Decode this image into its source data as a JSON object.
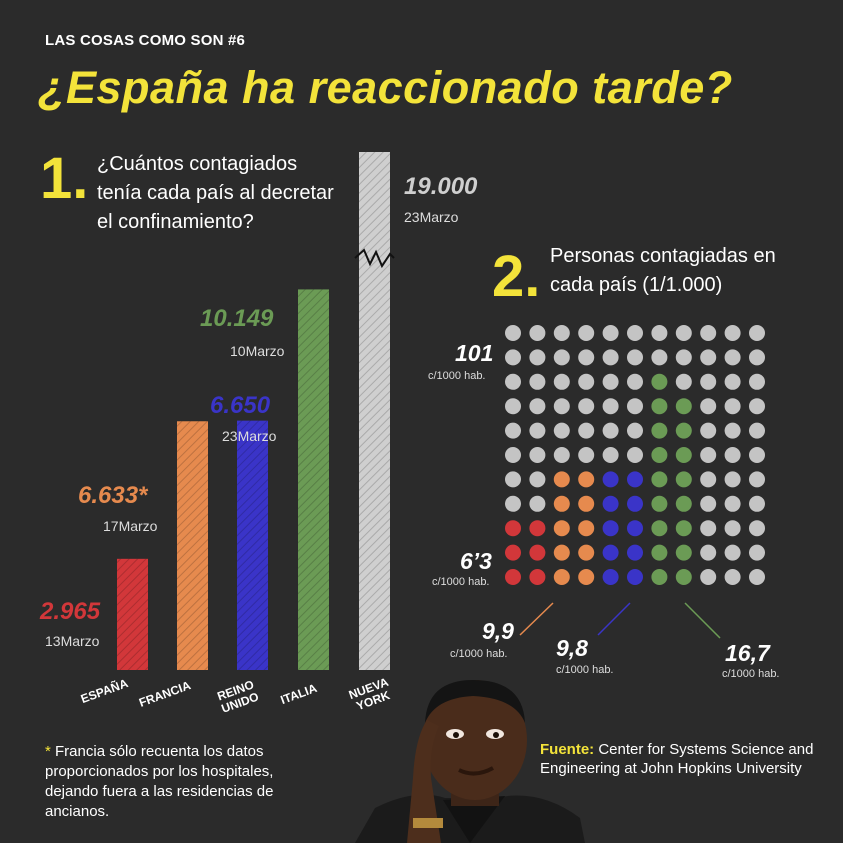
{
  "header": {
    "kicker": "LAS COSAS COMO SON #6",
    "title": "¿España ha reaccionado tarde?"
  },
  "section1": {
    "number": "1.",
    "question": "¿Cuántos contagiados tenía cada país al decretar el confinamiento?"
  },
  "section2": {
    "number": "2.",
    "question": "Personas contagiadas en cada país (1/1.000)"
  },
  "colors": {
    "background": "#2b2b2b",
    "accent": "#f3e33a",
    "spain": "#d2373a",
    "france": "#e68a4e",
    "uk": "#3a34c8",
    "italy": "#6b9b55",
    "newyork": "#cfcfcf",
    "dot_default": "#c4c4c4"
  },
  "chart_data": [
    {
      "type": "bar",
      "categories": [
        "ESPAÑA",
        "FRANCIA",
        "REINO UNIDO",
        "ITALIA",
        "NUEVA YORK"
      ],
      "values": [
        2965,
        6633,
        6650,
        10149,
        19000
      ],
      "value_labels": [
        "2.965",
        "6.633*",
        "6.650",
        "10.149",
        "19.000"
      ],
      "dates": [
        "13Marzo",
        "17Marzo",
        "23Marzo",
        "10Marzo",
        "23Marzo"
      ],
      "series_colors": [
        "#d2373a",
        "#e68a4e",
        "#3a34c8",
        "#6b9b55",
        "#cfcfcf"
      ],
      "axis_break": "NUEVA YORK",
      "grid": false
    },
    {
      "type": "dot-matrix",
      "total": 121,
      "grid_shape": [
        11,
        11
      ],
      "highlighted_dots": [
        {
          "label": "6’3",
          "caption": "c/1000 hab.",
          "color": "#d2373a",
          "count": 6
        },
        {
          "label": "9,9",
          "caption": "c/1000 hab.",
          "color": "#e68a4e",
          "count": 10
        },
        {
          "label": "9,8",
          "caption": "c/1000 hab.",
          "color": "#3a34c8",
          "count": 10
        },
        {
          "label": "16,7",
          "caption": "c/1000 hab.",
          "color": "#6b9b55",
          "count": 17
        }
      ],
      "total_label": "101",
      "total_caption": "c/1000 hab."
    }
  ],
  "footnote": {
    "star": "*",
    "text": "Francia sólo recuenta los datos proporcionados por los hospitales, dejando fuera a las residencias de ancianos."
  },
  "source": {
    "label": "Fuente:",
    "text": "Center for Systems Science and Engineering at John Hopkins University"
  }
}
